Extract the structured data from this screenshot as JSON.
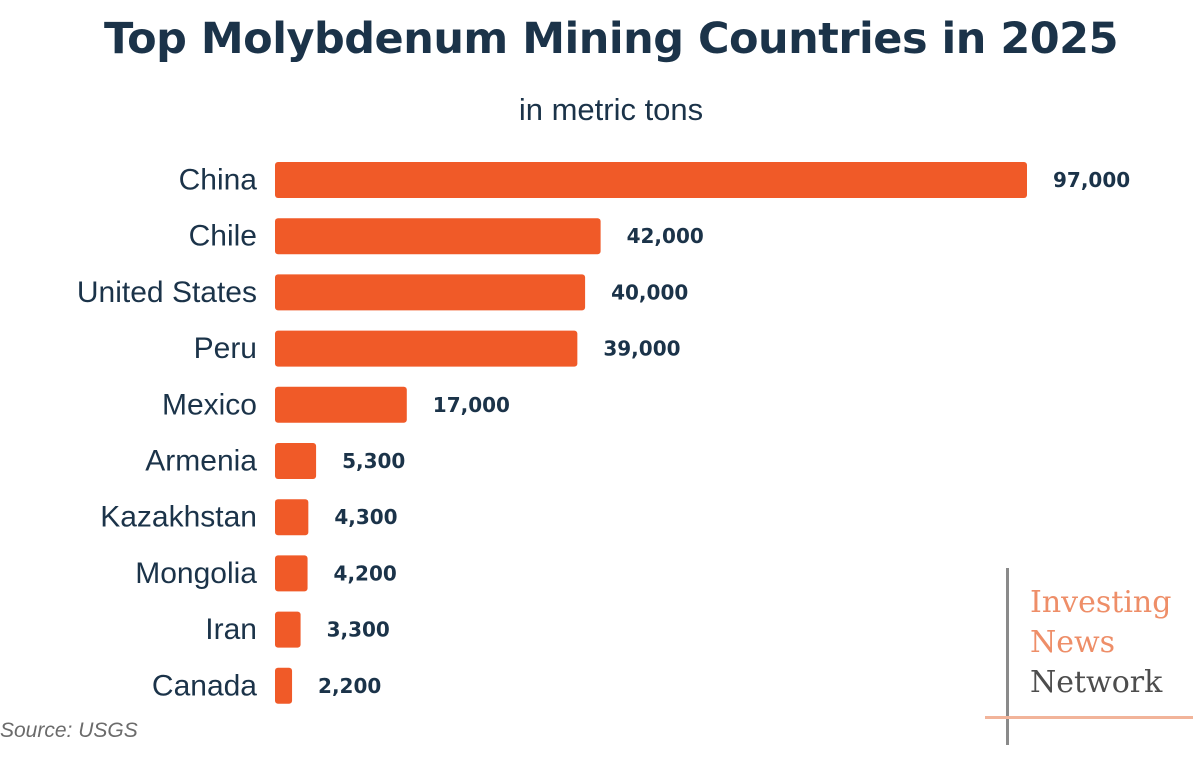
{
  "chart_data": {
    "type": "bar",
    "orientation": "horizontal",
    "title": "Top Molybdenum Mining Countries in 2025",
    "subtitle": "in metric tons",
    "categories": [
      "China",
      "Chile",
      "United States",
      "Peru",
      "Mexico",
      "Armenia",
      "Kazakhstan",
      "Mongolia",
      "Iran",
      "Canada"
    ],
    "values": [
      97000,
      42000,
      40000,
      39000,
      17000,
      5300,
      4300,
      4200,
      3300,
      2200
    ],
    "value_labels": [
      "97,000",
      "42,000",
      "40,000",
      "39,000",
      "17,000",
      "5,300",
      "4,300",
      "4,200",
      "3,300",
      "2,200"
    ],
    "xlim": [
      0,
      97000
    ],
    "grid": false,
    "bar_color": "#f05a28",
    "text_color": "#1b3349"
  },
  "source": "Source: USGS",
  "logo": {
    "line1": "Investing",
    "line2": "News",
    "line3": "Network"
  }
}
